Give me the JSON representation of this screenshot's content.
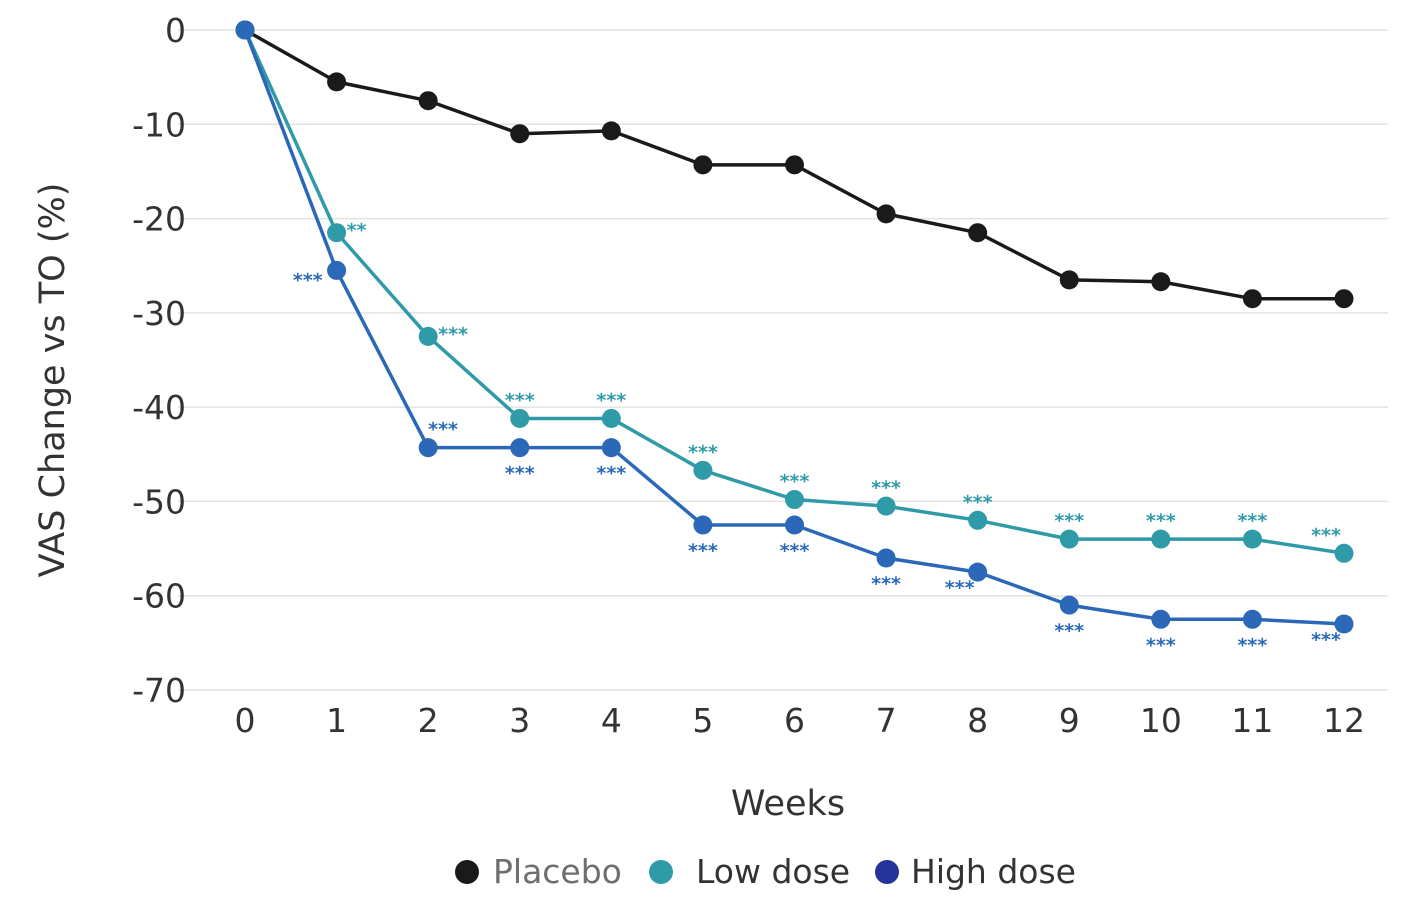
{
  "chart_data": {
    "type": "line",
    "title": "",
    "xlabel": "Weeks",
    "ylabel": "VAS Change vs TO (%)",
    "x": [
      0,
      1,
      2,
      3,
      4,
      5,
      6,
      7,
      8,
      9,
      10,
      11,
      12
    ],
    "x_tick_labels": [
      "0",
      "1",
      "2",
      "3",
      "4",
      "5",
      "6",
      "7",
      "8",
      "9",
      "10",
      "11",
      "12"
    ],
    "ylim": [
      -70,
      0
    ],
    "y_ticks": [
      0,
      -10,
      -20,
      -30,
      -40,
      -50,
      -60,
      -70
    ],
    "y_tick_labels": [
      "0",
      "-10",
      "-20",
      "-30",
      "-40",
      "-50",
      "-60",
      "-70"
    ],
    "grid": true,
    "legend_position": "bottom",
    "series": [
      {
        "name": "Placebo",
        "color": "#1a1a1a",
        "legend_color": "#1a1a1a",
        "legend_text_color": "#6e6e6e",
        "values": [
          0,
          -5.5,
          -7.5,
          -11,
          -10.7,
          -14.3,
          -14.3,
          -19.5,
          -21.5,
          -26.5,
          -26.7,
          -28.5,
          -28.5
        ],
        "annotations": []
      },
      {
        "name": "Low dose",
        "color": "#2f9aa8",
        "legend_color": "#2f9aa8",
        "legend_text_color": "#333333",
        "values": [
          0,
          -21.5,
          -32.5,
          -41.2,
          -41.2,
          -46.7,
          -49.8,
          -50.5,
          -52,
          -54,
          -54,
          -54,
          -55.5
        ],
        "annotations": [
          {
            "x": 1,
            "text": "**",
            "pos": "right"
          },
          {
            "x": 2,
            "text": "***",
            "pos": "right"
          },
          {
            "x": 3,
            "text": "***",
            "pos": "above"
          },
          {
            "x": 4,
            "text": "***",
            "pos": "above"
          },
          {
            "x": 5,
            "text": "***",
            "pos": "above"
          },
          {
            "x": 6,
            "text": "***",
            "pos": "above"
          },
          {
            "x": 7,
            "text": "***",
            "pos": "above"
          },
          {
            "x": 8,
            "text": "***",
            "pos": "above"
          },
          {
            "x": 9,
            "text": "***",
            "pos": "above"
          },
          {
            "x": 10,
            "text": "***",
            "pos": "above"
          },
          {
            "x": 11,
            "text": "***",
            "pos": "above"
          },
          {
            "x": 12,
            "text": "***",
            "pos": "above-left"
          }
        ]
      },
      {
        "name": "High dose",
        "color": "#2b68b8",
        "legend_color": "#25349a",
        "legend_text_color": "#333333",
        "values": [
          0,
          -25.5,
          -44.3,
          -44.3,
          -44.3,
          -52.5,
          -52.5,
          -56,
          -57.5,
          -61,
          -62.5,
          -62.5,
          -63
        ],
        "annotations": [
          {
            "x": 1,
            "text": "***",
            "pos": "left"
          },
          {
            "x": 2,
            "text": "***",
            "pos": "above-right"
          },
          {
            "x": 3,
            "text": "***",
            "pos": "below"
          },
          {
            "x": 4,
            "text": "***",
            "pos": "below"
          },
          {
            "x": 5,
            "text": "***",
            "pos": "below"
          },
          {
            "x": 6,
            "text": "***",
            "pos": "below"
          },
          {
            "x": 7,
            "text": "***",
            "pos": "below"
          },
          {
            "x": 8,
            "text": "***",
            "pos": "below-left"
          },
          {
            "x": 9,
            "text": "***",
            "pos": "below"
          },
          {
            "x": 10,
            "text": "***",
            "pos": "below"
          },
          {
            "x": 11,
            "text": "***",
            "pos": "below"
          },
          {
            "x": 12,
            "text": "***",
            "pos": "below-left"
          }
        ]
      }
    ]
  }
}
